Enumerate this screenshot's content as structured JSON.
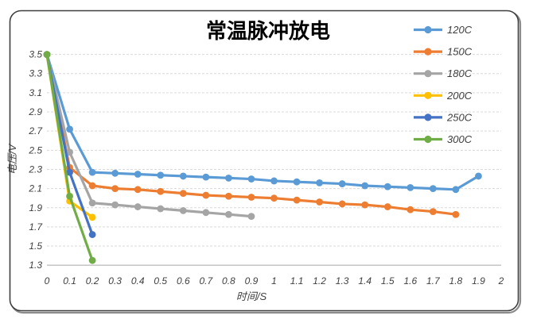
{
  "chart_data": {
    "type": "line",
    "title": "常温脉冲放电",
    "xlabel": "时间/S",
    "ylabel": "电压/V",
    "xlim": [
      0,
      2
    ],
    "ylim": [
      1.3,
      3.5
    ],
    "xticks": [
      "0",
      "0.1",
      "0.2",
      "0.3",
      "0.4",
      "0.5",
      "0.6",
      "0.7",
      "0.8",
      "0.9",
      "1",
      "1.1",
      "1.2",
      "1.3",
      "1.4",
      "1.5",
      "1.6",
      "1.7",
      "1.8",
      "1.9",
      "2"
    ],
    "yticks": [
      "3.5",
      "3.3",
      "3.1",
      "2.9",
      "2.7",
      "2.5",
      "2.3",
      "2.1",
      "1.9",
      "1.7",
      "1.5",
      "1.3"
    ],
    "grid": "horizontal-dashed",
    "gridline_color": "#d9d9d9",
    "axis_line_color": "#bfbfbf",
    "legend_position": "top-right-overlay",
    "series": [
      {
        "name": "120C",
        "color": "#5B9BD5",
        "x": [
          0,
          0.1,
          0.2,
          0.3,
          0.4,
          0.5,
          0.6,
          0.7,
          0.8,
          0.9,
          1.0,
          1.1,
          1.2,
          1.3,
          1.4,
          1.5,
          1.6,
          1.7,
          1.8,
          1.9
        ],
        "values": [
          3.5,
          2.72,
          2.27,
          2.26,
          2.25,
          2.24,
          2.23,
          2.22,
          2.21,
          2.2,
          2.18,
          2.17,
          2.16,
          2.15,
          2.13,
          2.12,
          2.11,
          2.1,
          2.09,
          2.23
        ]
      },
      {
        "name": "150C",
        "color": "#ED7D31",
        "x": [
          0,
          0.1,
          0.2,
          0.3,
          0.4,
          0.5,
          0.6,
          0.7,
          0.8,
          0.9,
          1.0,
          1.1,
          1.2,
          1.3,
          1.4,
          1.5,
          1.6,
          1.7,
          1.8
        ],
        "values": [
          3.5,
          2.32,
          2.13,
          2.1,
          2.09,
          2.07,
          2.05,
          2.03,
          2.02,
          2.01,
          2.0,
          1.98,
          1.96,
          1.94,
          1.93,
          1.91,
          1.88,
          1.86,
          1.83
        ]
      },
      {
        "name": "180C",
        "color": "#A5A5A5",
        "x": [
          0,
          0.1,
          0.2,
          0.3,
          0.4,
          0.5,
          0.6,
          0.7,
          0.8,
          0.9
        ],
        "values": [
          3.5,
          2.48,
          1.95,
          1.93,
          1.91,
          1.89,
          1.87,
          1.85,
          1.83,
          1.81
        ]
      },
      {
        "name": "200C",
        "color": "#FFC000",
        "x": [
          0,
          0.1,
          0.2
        ],
        "values": [
          3.5,
          1.97,
          1.8
        ]
      },
      {
        "name": "250C",
        "color": "#4472C4",
        "x": [
          0,
          0.1,
          0.2
        ],
        "values": [
          3.5,
          2.27,
          1.62
        ]
      },
      {
        "name": "300C",
        "color": "#70AD47",
        "x": [
          0,
          0.1,
          0.2
        ],
        "values": [
          3.5,
          2.02,
          1.35
        ]
      }
    ]
  }
}
